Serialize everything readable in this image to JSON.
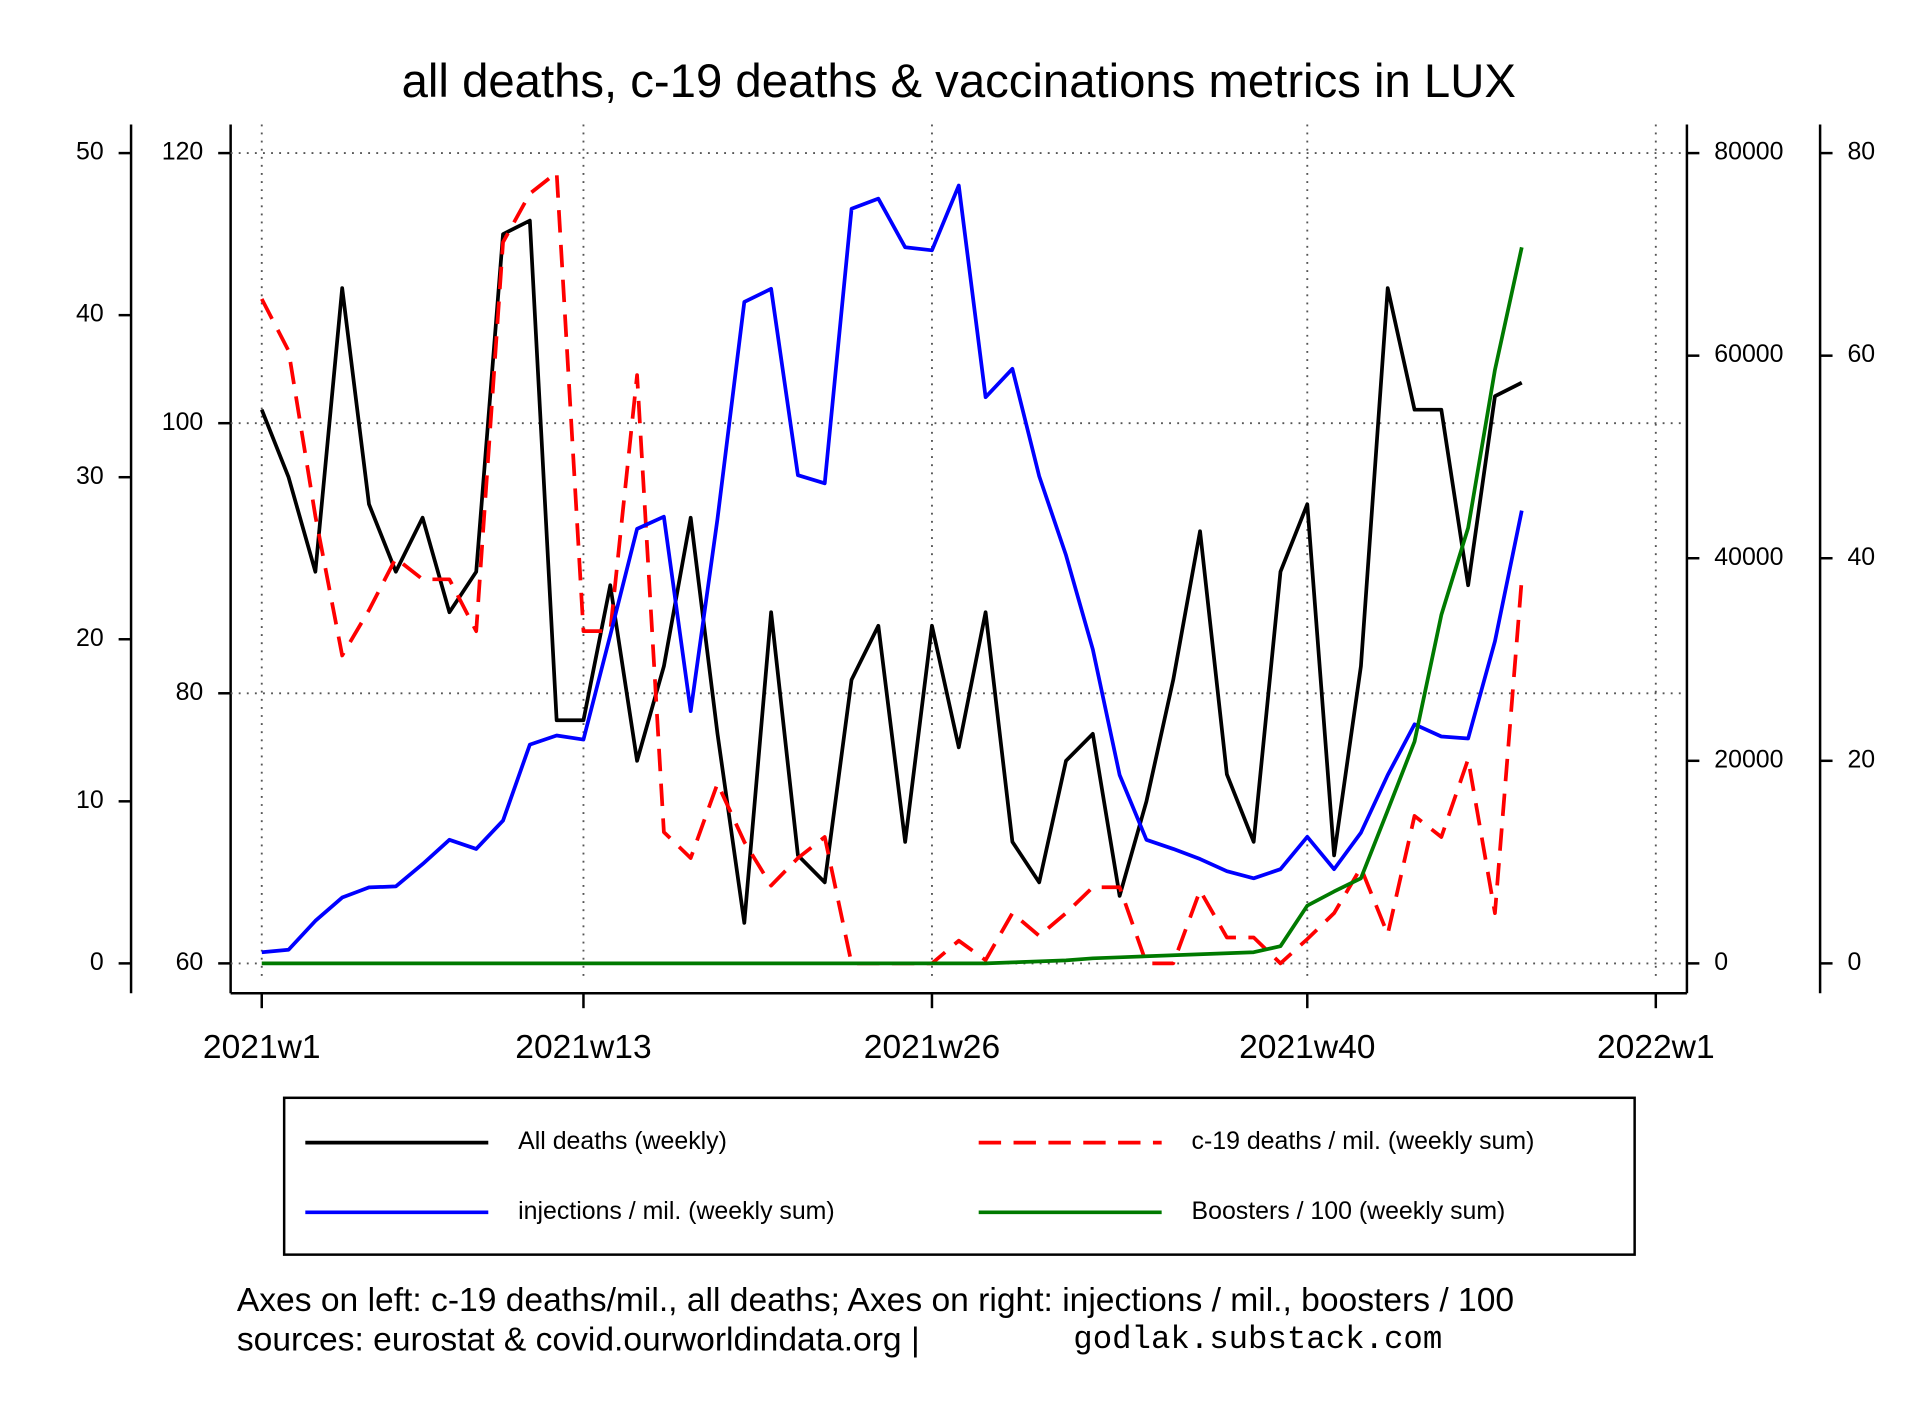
{
  "chart_data": {
    "type": "line",
    "title": "all deaths, c-19 deaths & vaccinations metrics in LUX",
    "x": [
      1,
      2,
      3,
      4,
      5,
      6,
      7,
      8,
      9,
      10,
      11,
      12,
      13,
      14,
      15,
      16,
      17,
      18,
      19,
      20,
      21,
      22,
      23,
      24,
      25,
      26,
      27,
      28,
      29,
      30,
      31,
      32,
      33,
      34,
      35,
      36,
      37,
      38,
      39,
      40,
      41,
      42,
      43,
      44,
      45,
      46,
      47,
      48
    ],
    "xlim": [
      1,
      53
    ],
    "xticks": [
      {
        "value": 1,
        "label": "2021w1"
      },
      {
        "value": 13,
        "label": "2021w13"
      },
      {
        "value": 26,
        "label": "2021w26"
      },
      {
        "value": 40,
        "label": "2021w40"
      },
      {
        "value": 53,
        "label": "2022w1"
      }
    ],
    "ylim": [
      0,
      50
    ],
    "yticks": [
      0,
      10,
      20,
      30,
      40,
      50
    ],
    "y2lim": [
      60,
      120
    ],
    "y2ticks": [
      60,
      80,
      100,
      120
    ],
    "y3lim": [
      0,
      80000
    ],
    "y3ticks": [
      0,
      20000,
      40000,
      60000,
      80000
    ],
    "y4lim": [
      0,
      80
    ],
    "y4ticks": [
      0,
      20,
      40,
      60,
      80
    ],
    "grid": true,
    "legend_position": "bottom",
    "series": [
      {
        "name": "All deaths (weekly)",
        "color": "#000000",
        "line_style": "solid",
        "axis": "y2",
        "values": [
          101,
          96,
          89,
          110,
          94,
          89,
          93,
          86,
          89,
          114,
          115,
          78,
          78,
          88,
          75,
          82,
          93,
          77,
          63,
          86,
          68,
          66,
          81,
          85,
          69,
          85,
          76,
          86,
          69,
          66,
          75,
          77,
          65,
          72,
          81,
          92,
          74,
          69,
          89,
          94,
          68,
          82,
          110,
          101,
          101,
          88,
          102,
          103
        ]
      },
      {
        "name": "c-19 deaths / mil. (weekly sum)",
        "color": "#ff0000",
        "line_style": "dashed",
        "axis": "y",
        "values": [
          41.0,
          37.8,
          27.6,
          19.0,
          21.8,
          25.0,
          23.7,
          23.7,
          20.5,
          44.5,
          47.5,
          48.8,
          20.5,
          20.5,
          36.3,
          8.1,
          6.5,
          11.1,
          7.5,
          4.8,
          6.5,
          7.8,
          0,
          0,
          0,
          0,
          1.4,
          0.2,
          3.1,
          1.7,
          3.1,
          4.7,
          4.7,
          0,
          0,
          4.5,
          1.6,
          1.6,
          0,
          1.5,
          3.1,
          5.9,
          1.8,
          9.1,
          7.8,
          12.6,
          3.1,
          23.7
        ]
      },
      {
        "name": "injections / mil. (weekly sum)",
        "color": "#0000ff",
        "line_style": "solid",
        "axis": "y3",
        "values": [
          1100,
          1350,
          4200,
          6500,
          7500,
          7600,
          9800,
          12200,
          11300,
          14100,
          21600,
          22500,
          22100,
          32400,
          42900,
          44100,
          24900,
          43900,
          65300,
          66600,
          48200,
          47400,
          74500,
          75500,
          70700,
          70400,
          76800,
          55900,
          58700,
          48100,
          40300,
          31000,
          18600,
          12200,
          11300,
          10300,
          9100,
          8400,
          9300,
          12500,
          9300,
          12900,
          18600,
          23600,
          22400,
          22200,
          31800,
          44700
        ]
      },
      {
        "name": "Boosters / 100 (weekly sum)",
        "color": "#007a00",
        "line_style": "solid",
        "axis": "y4",
        "values": [
          0,
          0,
          0,
          0,
          0,
          0,
          0,
          0,
          0,
          0,
          0,
          0,
          0,
          0,
          0,
          0,
          0,
          0,
          0,
          0,
          0,
          0,
          0,
          0,
          0,
          0,
          0,
          0,
          0.1,
          0.2,
          0.3,
          0.5,
          0.6,
          0.7,
          0.8,
          0.9,
          1.0,
          1.1,
          1.7,
          5.7,
          7.1,
          8.4,
          15.1,
          21.9,
          34.4,
          43.0,
          58.6,
          70.7
        ]
      }
    ],
    "caption": "Axes on left: c-19 deaths/mil., all deaths; Axes on right: injections / mil., boosters / 100",
    "sources": "sources: eurostat & covid.ourworldindata.org |",
    "credit": "godlak.substack.com"
  }
}
